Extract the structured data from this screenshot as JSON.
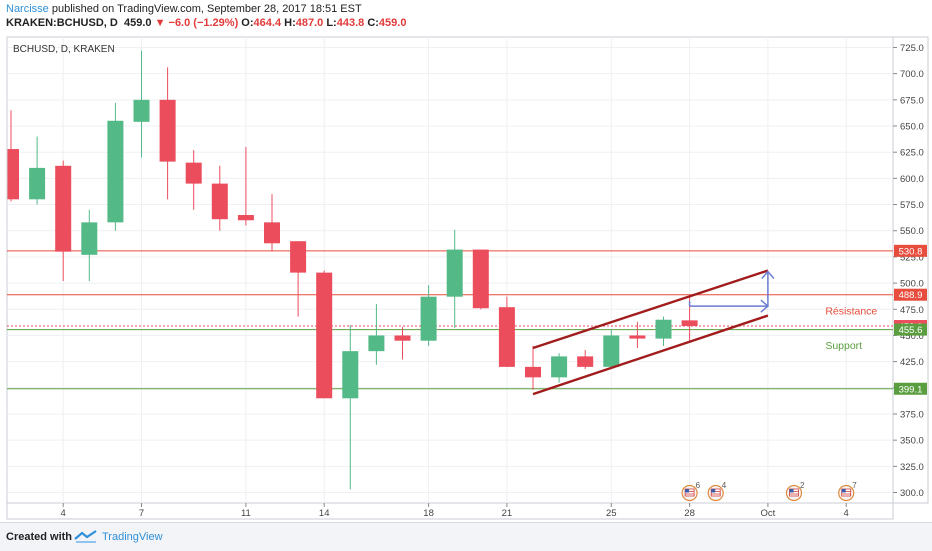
{
  "header": {
    "author": "Narcisse",
    "published_text": "published on TradingView.com, September 28, 2017 18:51 EST",
    "symbol": "KRAKEN:BCHUSD, D",
    "last": "459.0",
    "change_arrow": "▼",
    "change": "−6.0 (−1.29%)",
    "o_label": "O:",
    "o_value": "464.4",
    "h_label": "H:",
    "h_value": "487.0",
    "l_label": "L:",
    "l_value": "443.8",
    "c_label": "C:",
    "c_value": "459.0"
  },
  "footer": {
    "created_with": "Created with",
    "brand": "TradingView"
  },
  "colors": {
    "up": "#53b987",
    "down": "#eb4d5c",
    "resistance": "#e74c3c",
    "support": "#5a9e3f",
    "channel": "#a11d1d",
    "projection": "#6a7bd1"
  },
  "chart_data": {
    "type": "candlestick",
    "title": "BCHUSD, D, KRAKEN",
    "ylim": [
      290,
      735
    ],
    "y_ticks": [
      "725.0",
      "700.0",
      "675.0",
      "650.0",
      "625.0",
      "600.0",
      "575.0",
      "550.0",
      "525.0",
      "500.0",
      "475.0",
      "450.0",
      "425.0",
      "400.0",
      "375.0",
      "350.0",
      "325.0",
      "300.0"
    ],
    "x_ticks": [
      {
        "label": "4",
        "i": 2
      },
      {
        "label": "7",
        "i": 5
      },
      {
        "label": "11",
        "i": 9
      },
      {
        "label": "14",
        "i": 12
      },
      {
        "label": "18",
        "i": 16
      },
      {
        "label": "21",
        "i": 19
      },
      {
        "label": "25",
        "i": 23
      },
      {
        "label": "28",
        "i": 26
      },
      {
        "label": "Oct",
        "i": 29
      },
      {
        "label": "4",
        "i": 32
      }
    ],
    "candles": [
      {
        "o": 628,
        "h": 665,
        "l": 578,
        "c": 580
      },
      {
        "o": 580,
        "h": 640,
        "l": 575,
        "c": 610
      },
      {
        "o": 612,
        "h": 617,
        "l": 502,
        "c": 530
      },
      {
        "o": 527,
        "h": 570,
        "l": 502,
        "c": 558
      },
      {
        "o": 558,
        "h": 672,
        "l": 550,
        "c": 655
      },
      {
        "o": 654,
        "h": 722,
        "l": 620,
        "c": 675
      },
      {
        "o": 675,
        "h": 706,
        "l": 580,
        "c": 616
      },
      {
        "o": 615,
        "h": 627,
        "l": 570,
        "c": 595
      },
      {
        "o": 595,
        "h": 612,
        "l": 550,
        "c": 561
      },
      {
        "o": 565,
        "h": 630,
        "l": 555,
        "c": 560
      },
      {
        "o": 558,
        "h": 585,
        "l": 530,
        "c": 538
      },
      {
        "o": 540,
        "h": 540,
        "l": 468,
        "c": 510
      },
      {
        "o": 510,
        "h": 512,
        "l": 390,
        "c": 390
      },
      {
        "o": 390,
        "h": 460,
        "l": 303,
        "c": 435
      },
      {
        "o": 435,
        "h": 480,
        "l": 422,
        "c": 450
      },
      {
        "o": 450,
        "h": 458,
        "l": 427,
        "c": 445
      },
      {
        "o": 445,
        "h": 498,
        "l": 440,
        "c": 487
      },
      {
        "o": 487,
        "h": 551,
        "l": 457,
        "c": 532
      },
      {
        "o": 532,
        "h": 532,
        "l": 475,
        "c": 476
      },
      {
        "o": 477,
        "h": 487,
        "l": 420,
        "c": 420
      },
      {
        "o": 420,
        "h": 440,
        "l": 398,
        "c": 410
      },
      {
        "o": 410,
        "h": 433,
        "l": 405,
        "c": 430
      },
      {
        "o": 430,
        "h": 436,
        "l": 418,
        "c": 420
      },
      {
        "o": 420,
        "h": 456,
        "l": 418,
        "c": 450
      },
      {
        "o": 450,
        "h": 463,
        "l": 438,
        "c": 447
      },
      {
        "o": 447,
        "h": 468,
        "l": 440,
        "c": 465
      },
      {
        "o": 464.4,
        "h": 487.0,
        "l": 443.8,
        "c": 459.0
      }
    ],
    "horizontal_levels": [
      {
        "value": 530.8,
        "label": "530.8",
        "kind": "resistance"
      },
      {
        "value": 488.9,
        "label": "488.9",
        "kind": "resistance"
      },
      {
        "value": 459.0,
        "label": "459.0",
        "kind": "last"
      },
      {
        "value": 455.6,
        "label": "455.6",
        "kind": "support"
      },
      {
        "value": 399.1,
        "label": "399.1",
        "kind": "support"
      }
    ],
    "annotations": [
      {
        "text": "Résistance",
        "i": 31.2,
        "value": 474,
        "kind": "resistance"
      },
      {
        "text": "Support",
        "i": 31.2,
        "value": 441,
        "kind": "support"
      }
    ],
    "channel": {
      "upper": [
        {
          "i": 20.0,
          "value": 438
        },
        {
          "i": 29.0,
          "value": 512
        }
      ],
      "lower": [
        {
          "i": 20.0,
          "value": 394
        },
        {
          "i": 29.0,
          "value": 469
        }
      ]
    },
    "projection": {
      "from": {
        "i": 26.0,
        "value": 478
      },
      "corner": {
        "i": 29.0,
        "value": 478
      },
      "to": {
        "i": 29.0,
        "value": 511
      }
    },
    "events": [
      {
        "i": 26.0,
        "count": "6"
      },
      {
        "i": 27.0,
        "count": "4"
      },
      {
        "i": 30.0,
        "count": "2"
      },
      {
        "i": 32.0,
        "count": "7"
      }
    ]
  }
}
